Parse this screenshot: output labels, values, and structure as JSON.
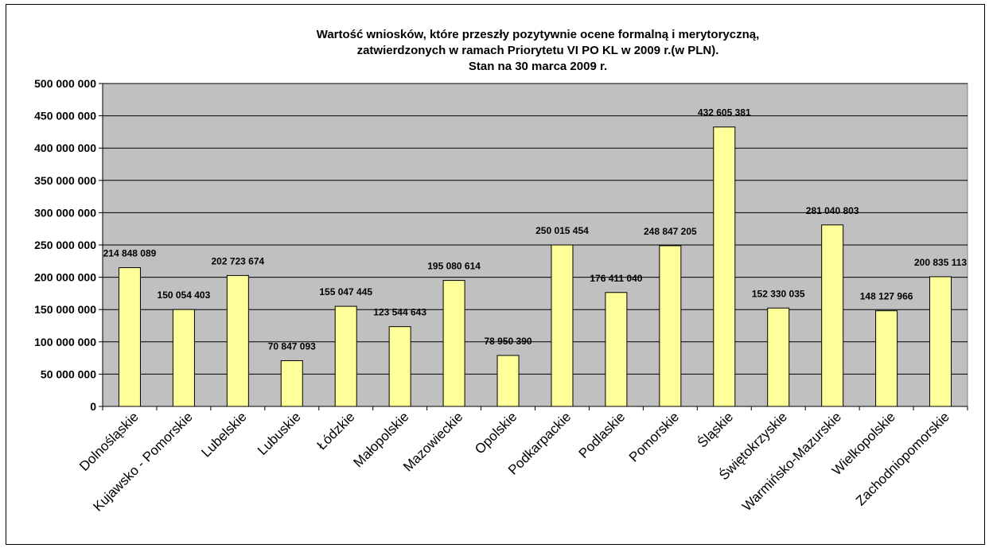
{
  "chart_data": {
    "type": "bar",
    "title_lines": [
      "Wartość  wniosków, które przeszły pozytywnie ocene formalną i merytoryczną,",
      "zatwierdzonych w ramach Priorytetu VI PO KL w 2009 r.(w PLN).",
      "Stan na 30 marca 2009 r."
    ],
    "categories": [
      "Dolnośląskie",
      "Kujawsko - Pomorskie",
      "Lubelskie",
      "Lubuskie",
      "Łódzkie",
      "Małopolskie",
      "Mazowieckie",
      "Opolskie",
      "Podkarpackie",
      "Podlaskie",
      "Pomorskie",
      "Śląskie",
      "Świętokrzyskie",
      "Warmińsko-Mazurskie",
      "Wielkopolskie",
      "Zachodniopomorskie"
    ],
    "values": [
      214848089,
      150054403,
      202723674,
      70847093,
      155047445,
      123544643,
      195080614,
      78950390,
      250015454,
      176411040,
      248847205,
      432605381,
      152330035,
      281040803,
      148127966,
      200835113
    ],
    "data_labels": [
      "214 848 089",
      "150 054 403",
      "202 723 674",
      "70 847 093",
      "155 047 445",
      "123 544 643",
      "195 080 614",
      "78 950 390",
      "250 015 454",
      "176 411 040",
      "248 847 205",
      "432 605 381",
      "152 330 035",
      "281 040 803",
      "148 127 966",
      "200 835 113"
    ],
    "yticks": [
      0,
      50000000,
      100000000,
      150000000,
      200000000,
      250000000,
      300000000,
      350000000,
      400000000,
      450000000,
      500000000
    ],
    "ytick_labels": [
      "0",
      "50 000 000",
      "100 000 000",
      "150 000 000",
      "200 000 000",
      "250 000 000",
      "300 000 000",
      "350 000 000",
      "400 000 000",
      "450 000 000",
      "500 000 000"
    ],
    "ylim": [
      0,
      500000000
    ],
    "grid": true,
    "legend": "none",
    "colors": {
      "plot_background": "#c0c0c0",
      "bar_fill": "#ffff99",
      "bar_stroke": "#000000",
      "gridline": "#000000"
    }
  }
}
